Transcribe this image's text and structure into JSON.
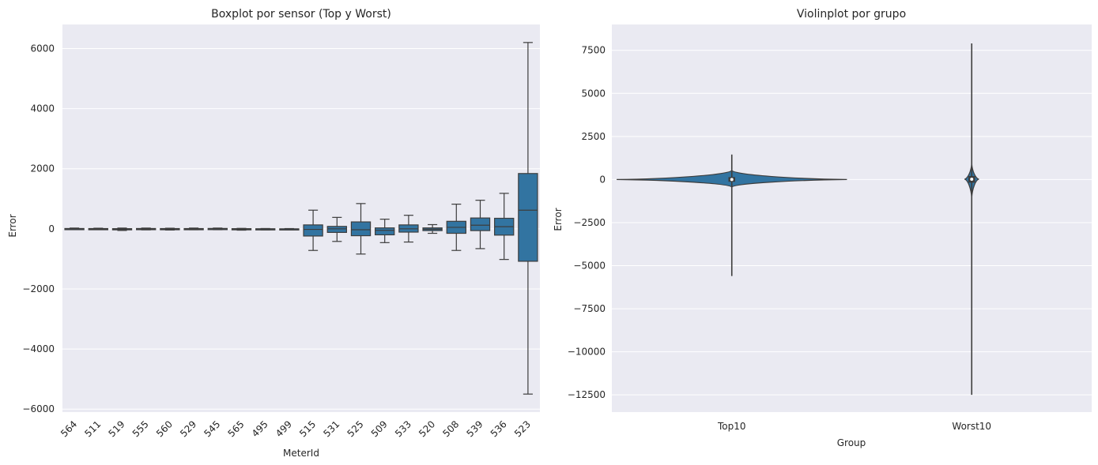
{
  "chart_data": [
    {
      "type": "box",
      "title": "Boxplot por sensor (Top y Worst)",
      "xlabel": "MeterId",
      "ylabel": "Error",
      "ylim": [
        -6100,
        6800
      ],
      "yticks": [
        -6000,
        -4000,
        -2000,
        0,
        2000,
        4000,
        6000
      ],
      "ytick_labels": [
        "−6000",
        "−4000",
        "−2000",
        "0",
        "2000",
        "4000",
        "6000"
      ],
      "grid": true,
      "color": "#3274a1",
      "categories": [
        "564",
        "511",
        "519",
        "555",
        "560",
        "529",
        "545",
        "565",
        "495",
        "499",
        "515",
        "531",
        "525",
        "509",
        "533",
        "520",
        "508",
        "539",
        "536",
        "523"
      ],
      "boxes": [
        {
          "whislo": -25,
          "q1": -10,
          "med": 0,
          "q3": 10,
          "whishi": 25
        },
        {
          "whislo": -25,
          "q1": -12,
          "med": -3,
          "q3": 8,
          "whishi": 20
        },
        {
          "whislo": -55,
          "q1": -28,
          "med": -12,
          "q3": 5,
          "whishi": 25
        },
        {
          "whislo": -35,
          "q1": -18,
          "med": -3,
          "q3": 10,
          "whishi": 25
        },
        {
          "whislo": -40,
          "q1": -25,
          "med": -8,
          "q3": 8,
          "whishi": 20
        },
        {
          "whislo": -30,
          "q1": -15,
          "med": -3,
          "q3": 8,
          "whishi": 25
        },
        {
          "whislo": -30,
          "q1": -15,
          "med": 0,
          "q3": 12,
          "whishi": 25
        },
        {
          "whislo": -45,
          "q1": -25,
          "med": -8,
          "q3": 5,
          "whishi": 15
        },
        {
          "whislo": -35,
          "q1": -25,
          "med": -10,
          "q3": 2,
          "whishi": 10
        },
        {
          "whislo": -30,
          "q1": -20,
          "med": -8,
          "q3": 0,
          "whishi": 8
        },
        {
          "whislo": -720,
          "q1": -240,
          "med": -20,
          "q3": 130,
          "whishi": 620
        },
        {
          "whislo": -420,
          "q1": -120,
          "med": 0,
          "q3": 80,
          "whishi": 380
        },
        {
          "whislo": -840,
          "q1": -230,
          "med": -30,
          "q3": 230,
          "whishi": 840
        },
        {
          "whislo": -460,
          "q1": -200,
          "med": -50,
          "q3": 30,
          "whishi": 320
        },
        {
          "whislo": -440,
          "q1": -110,
          "med": 0,
          "q3": 130,
          "whishi": 450
        },
        {
          "whislo": -150,
          "q1": -60,
          "med": -15,
          "q3": 30,
          "whishi": 140
        },
        {
          "whislo": -720,
          "q1": -150,
          "med": 50,
          "q3": 250,
          "whishi": 820
        },
        {
          "whislo": -660,
          "q1": -60,
          "med": 120,
          "q3": 360,
          "whishi": 950
        },
        {
          "whislo": -1020,
          "q1": -210,
          "med": 70,
          "q3": 350,
          "whishi": 1180
        },
        {
          "whislo": -5500,
          "q1": -1080,
          "med": 620,
          "q3": 1840,
          "whishi": 6200
        }
      ]
    },
    {
      "type": "violin",
      "title": "Violinplot por grupo",
      "xlabel": "Group",
      "ylabel": "Error",
      "ylim": [
        -13500,
        9000
      ],
      "yticks": [
        -12500,
        -10000,
        -7500,
        -5000,
        -2500,
        0,
        2500,
        5000,
        7500
      ],
      "ytick_labels": [
        "−12500",
        "−10000",
        "−7500",
        "−5000",
        "−2500",
        "0",
        "2500",
        "5000",
        "7500"
      ],
      "grid": true,
      "color": "#3274a1",
      "categories": [
        "Top10",
        "Worst10"
      ],
      "violins": [
        {
          "min": -5600,
          "max": 1450,
          "q1": -50,
          "med": 0,
          "q3": 60,
          "max_half_width": 0.48
        },
        {
          "min": -12500,
          "max": 7900,
          "q1": -100,
          "med": 20,
          "q3": 120,
          "max_half_width": 0.03
        }
      ]
    }
  ]
}
